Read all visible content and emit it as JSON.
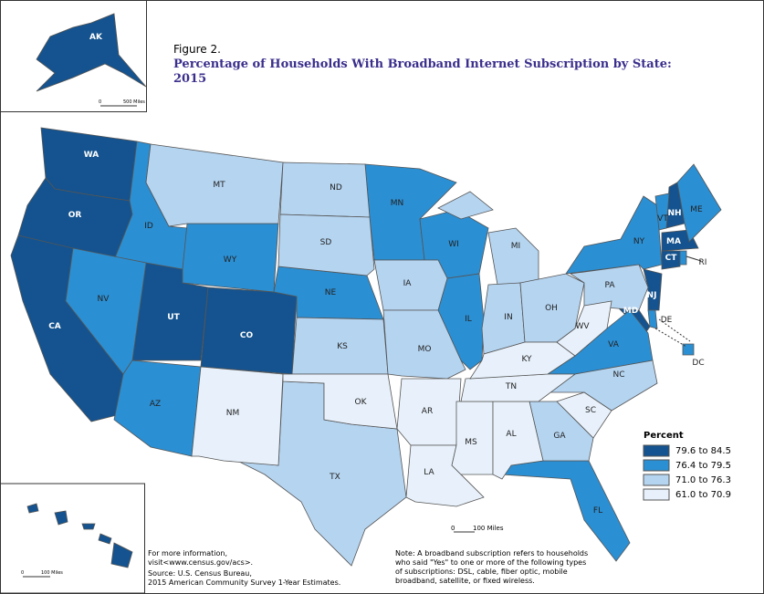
{
  "figure_label": "Figure 2.",
  "title_lines": [
    "Percentage of Households With Broadband Internet Subscription by State:",
    "2015"
  ],
  "legend": {
    "title": "Percent",
    "entries": [
      {
        "label": "79.6 to 84.5",
        "color": "#14538f",
        "states": [
          "WA",
          "OR",
          "CA",
          "UT",
          "CO",
          "NH",
          "MA",
          "CT",
          "NJ",
          "MD",
          "AK",
          "HI"
        ]
      },
      {
        "label": "76.4 to 79.5",
        "color": "#2b8fd3",
        "states": [
          "ID",
          "NV",
          "WY",
          "AZ",
          "MN",
          "WI",
          "NE",
          "IL",
          "VA",
          "FL",
          "NY",
          "ME",
          "VT",
          "DC",
          "RI",
          "DE"
        ]
      },
      {
        "label": "71.0 to 76.3",
        "color": "#b5d4f0",
        "states": [
          "MT",
          "ND",
          "SD",
          "KS",
          "TX",
          "IA",
          "MO",
          "MI",
          "IN",
          "OH",
          "PA",
          "GA",
          "NC"
        ]
      },
      {
        "label": "61.0 to 70.9",
        "color": "#e8f1fb",
        "states": [
          "NM",
          "OK",
          "AR",
          "LA",
          "MS",
          "AL",
          "TN",
          "KY",
          "WV",
          "SC"
        ]
      }
    ]
  },
  "scale_bars": {
    "alaska": [
      "0",
      "500 Miles"
    ],
    "hawaii": [
      "0",
      "100 Miles"
    ],
    "main": [
      "0",
      "100 Miles"
    ]
  },
  "source_lines": [
    "For more information,",
    "visit<www.census.gov/acs>.",
    "Source: U.S. Census Bureau,",
    "2015 American Community Survey 1-Year Estimates."
  ],
  "note_lines": [
    "Note: A broadband subscription refers to households",
    "who said \"Yes\" to one or more of the following types",
    "of subscriptions: DSL, cable, fiber optic, mobile",
    "broadband, satellite, or fixed wireless."
  ]
}
